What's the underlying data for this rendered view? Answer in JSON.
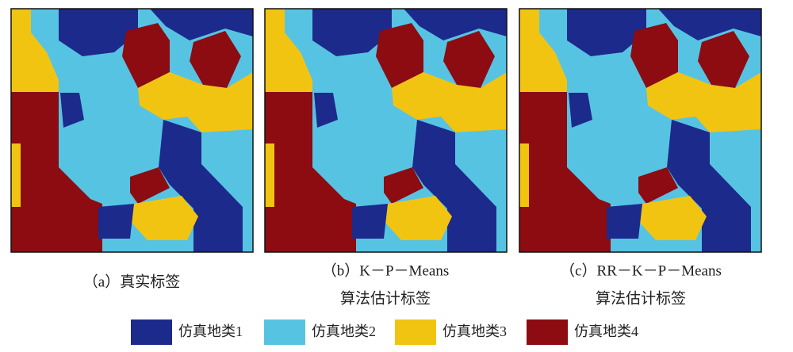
{
  "panels": [
    {
      "caption": [
        "（a）真实标签"
      ]
    },
    {
      "caption": [
        "（b）K－P－Means",
        "算法估计标签"
      ]
    },
    {
      "caption": [
        "（c）RR－K－P－Means",
        "算法估计标签"
      ]
    }
  ],
  "legend": [
    {
      "label": "仿真地类1",
      "color": "#1c2a8c"
    },
    {
      "label": "仿真地类2",
      "color": "#57c3e3"
    },
    {
      "label": "仿真地类3",
      "color": "#f2c412"
    },
    {
      "label": "仿真地类4",
      "color": "#8c0c12"
    }
  ]
}
